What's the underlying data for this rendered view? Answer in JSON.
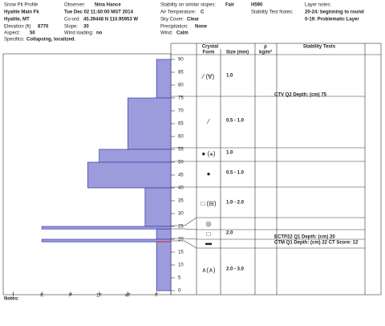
{
  "header": {
    "title": "Snow Pit Profile",
    "location": "Hyalite Main Fk",
    "region": "Hyalite, MT",
    "elevation_label": "Elevation (ft)",
    "elevation": "8770",
    "aspect_label": "Aspect:",
    "aspect": "50",
    "specifics_label": "Specifics:",
    "specifics": "Collapsing, localized.",
    "observer_label": "Observer:",
    "observer": "Nina Hance",
    "date": "Tue Dec 02 11:40:00 MST 2014",
    "coord_label": "Co-ord:",
    "coord": "45.39448 N 110.95953 W",
    "slope_label": "Slope:",
    "slope": "30",
    "wind_loading_label": "Wind loading:",
    "wind_loading": "no",
    "stability_label": "Stability on similar slopes:",
    "stability": "Fair",
    "air_temp_label": "Air Temperature:",
    "air_temp": "C",
    "sky_label": "Sky Cover:",
    "sky": "Clear",
    "precip_label": "Precipitation:",
    "precip": "None",
    "wind_label": "Wind:",
    "wind": "Calm",
    "code": "H590",
    "test_notes_label": "Stability Test Notes:",
    "layer_notes_label": "Layer notes:",
    "layer_notes": [
      "20-24: beginning to round",
      "0-19: Problematic Layer"
    ]
  },
  "columns": {
    "crystal": "Crystal",
    "form": "Form",
    "size": "Size (mm)",
    "rho": "ρ",
    "density": "kg/m³",
    "tests": "Stability Tests"
  },
  "crystals": [
    {
      "form": "⁄ (∀)",
      "size": "1.0"
    },
    {
      "form": "⁄",
      "size": "0.5 - 1.0"
    },
    {
      "form": "● (⚹)",
      "size": "1.0"
    },
    {
      "form": "●",
      "size": "0.5 - 1.0"
    },
    {
      "form": "□ (⊟)",
      "size": "1.0 - 2.0"
    },
    {
      "form": "◎"
    },
    {
      "form": "□",
      "size": "2.0"
    },
    {
      "form": "▬"
    },
    {
      "form": "∧(∧)",
      "size": "2.0 - 3.0"
    }
  ],
  "tests": [
    "CTV Q2 Depth: (cm) 75",
    "ECTP22 Q1 Depth: (cm) 20",
    "CTM Q1 Depth: (cm) 22 CT Score: 12"
  ],
  "notes_label": "Notes:",
  "chart_data": {
    "type": "hardness",
    "color": "#9c9cdc",
    "xlim": [
      -0.35,
      5.5
    ],
    "xticks": [
      {
        "value": 0,
        "label": "I"
      },
      {
        "value": 1,
        "label": "K"
      },
      {
        "value": 2,
        "label": "P"
      },
      {
        "value": 3,
        "label": "1F"
      },
      {
        "value": 4,
        "label": "4F"
      },
      {
        "value": 5,
        "label": "F"
      }
    ],
    "ylim": [
      0,
      91
    ],
    "yticks": [
      0,
      5,
      10,
      15,
      20,
      25,
      30,
      35,
      40,
      45,
      50,
      55,
      60,
      65,
      70,
      75,
      80,
      85,
      90
    ],
    "layers": [
      {
        "top": 90,
        "bottom": 75,
        "hardness": 5
      },
      {
        "top": 75,
        "bottom": 55,
        "hardness": 4
      },
      {
        "top": 55,
        "bottom": 50,
        "hardness": 3
      },
      {
        "top": 50,
        "bottom": 40,
        "hardness": 2.6
      },
      {
        "top": 40,
        "bottom": 25,
        "hardness": 4.6
      },
      {
        "top": 25,
        "bottom": 24,
        "hardness": 1
      },
      {
        "top": 24,
        "bottom": 20,
        "hardness": 5
      },
      {
        "top": 20,
        "bottom": 19,
        "hardness": 1
      },
      {
        "top": 19,
        "bottom": 0,
        "hardness": 5
      }
    ]
  }
}
